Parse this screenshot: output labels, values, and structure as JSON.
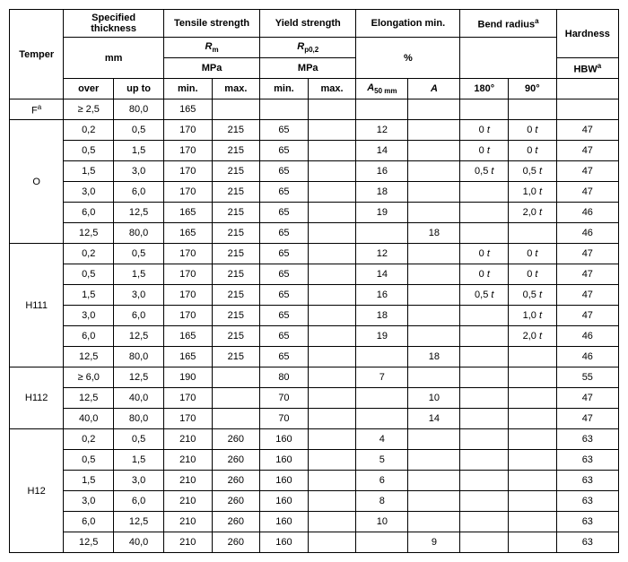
{
  "headers": {
    "temper": "Temper",
    "thickness": "Specified thickness",
    "tensile": "Tensile strength",
    "yield": "Yield strength",
    "elong": "Elongation min.",
    "bend": "Bend radius",
    "bend_sup": "a",
    "hardness": "Hardness",
    "Rm": "R",
    "Rm_sub": "m",
    "Rp": "R",
    "Rp_sub": "p0,2",
    "mm": "mm",
    "MPa": "MPa",
    "pct": "%",
    "HBW": "HBW",
    "HBW_sup": "a",
    "over": "over",
    "upto": "up to",
    "min": "min.",
    "max": "max.",
    "A50": "A",
    "A50_sub": "50 mm",
    "A": "A",
    "d180": "180°",
    "d90": "90°"
  },
  "groups": [
    {
      "temper": "F",
      "temper_sup": "a",
      "rows": [
        {
          "over": "≥ 2,5",
          "upto": "80,0",
          "tmin": "165",
          "tmax": "",
          "ymin": "",
          "ymax": "",
          "a50": "",
          "a": "",
          "b180": "",
          "b90": "",
          "hb": ""
        }
      ]
    },
    {
      "temper": "O",
      "rows": [
        {
          "over": "0,2",
          "upto": "0,5",
          "tmin": "170",
          "tmax": "215",
          "ymin": "65",
          "ymax": "",
          "a50": "12",
          "a": "",
          "b180": "0 t",
          "b90": "0 t",
          "hb": "47"
        },
        {
          "over": "0,5",
          "upto": "1,5",
          "tmin": "170",
          "tmax": "215",
          "ymin": "65",
          "ymax": "",
          "a50": "14",
          "a": "",
          "b180": "0 t",
          "b90": "0 t",
          "hb": "47"
        },
        {
          "over": "1,5",
          "upto": "3,0",
          "tmin": "170",
          "tmax": "215",
          "ymin": "65",
          "ymax": "",
          "a50": "16",
          "a": "",
          "b180": "0,5 t",
          "b90": "0,5 t",
          "hb": "47"
        },
        {
          "over": "3,0",
          "upto": "6,0",
          "tmin": "170",
          "tmax": "215",
          "ymin": "65",
          "ymax": "",
          "a50": "18",
          "a": "",
          "b180": "",
          "b90": "1,0 t",
          "hb": "47"
        },
        {
          "over": "6,0",
          "upto": "12,5",
          "tmin": "165",
          "tmax": "215",
          "ymin": "65",
          "ymax": "",
          "a50": "19",
          "a": "",
          "b180": "",
          "b90": "2,0 t",
          "hb": "46"
        },
        {
          "over": "12,5",
          "upto": "80,0",
          "tmin": "165",
          "tmax": "215",
          "ymin": "65",
          "ymax": "",
          "a50": "",
          "a": "18",
          "b180": "",
          "b90": "",
          "hb": "46"
        }
      ]
    },
    {
      "temper": "H111",
      "rows": [
        {
          "over": "0,2",
          "upto": "0,5",
          "tmin": "170",
          "tmax": "215",
          "ymin": "65",
          "ymax": "",
          "a50": "12",
          "a": "",
          "b180": "0 t",
          "b90": "0 t",
          "hb": "47"
        },
        {
          "over": "0,5",
          "upto": "1,5",
          "tmin": "170",
          "tmax": "215",
          "ymin": "65",
          "ymax": "",
          "a50": "14",
          "a": "",
          "b180": "0 t",
          "b90": "0 t",
          "hb": "47"
        },
        {
          "over": "1,5",
          "upto": "3,0",
          "tmin": "170",
          "tmax": "215",
          "ymin": "65",
          "ymax": "",
          "a50": "16",
          "a": "",
          "b180": "0,5 t",
          "b90": "0,5 t",
          "hb": "47"
        },
        {
          "over": "3,0",
          "upto": "6,0",
          "tmin": "170",
          "tmax": "215",
          "ymin": "65",
          "ymax": "",
          "a50": "18",
          "a": "",
          "b180": "",
          "b90": "1,0 t",
          "hb": "47"
        },
        {
          "over": "6,0",
          "upto": "12,5",
          "tmin": "165",
          "tmax": "215",
          "ymin": "65",
          "ymax": "",
          "a50": "19",
          "a": "",
          "b180": "",
          "b90": "2,0 t",
          "hb": "46"
        },
        {
          "over": "12,5",
          "upto": "80,0",
          "tmin": "165",
          "tmax": "215",
          "ymin": "65",
          "ymax": "",
          "a50": "",
          "a": "18",
          "b180": "",
          "b90": "",
          "hb": "46"
        }
      ]
    },
    {
      "temper": "H112",
      "rows": [
        {
          "over": "≥ 6,0",
          "upto": "12,5",
          "tmin": "190",
          "tmax": "",
          "ymin": "80",
          "ymax": "",
          "a50": "7",
          "a": "",
          "b180": "",
          "b90": "",
          "hb": "55"
        },
        {
          "over": "12,5",
          "upto": "40,0",
          "tmin": "170",
          "tmax": "",
          "ymin": "70",
          "ymax": "",
          "a50": "",
          "a": "10",
          "b180": "",
          "b90": "",
          "hb": "47"
        },
        {
          "over": "40,0",
          "upto": "80,0",
          "tmin": "170",
          "tmax": "",
          "ymin": "70",
          "ymax": "",
          "a50": "",
          "a": "14",
          "b180": "",
          "b90": "",
          "hb": "47"
        }
      ]
    },
    {
      "temper": "H12",
      "rows": [
        {
          "over": "0,2",
          "upto": "0,5",
          "tmin": "210",
          "tmax": "260",
          "ymin": "160",
          "ymax": "",
          "a50": "4",
          "a": "",
          "b180": "",
          "b90": "",
          "hb": "63"
        },
        {
          "over": "0,5",
          "upto": "1,5",
          "tmin": "210",
          "tmax": "260",
          "ymin": "160",
          "ymax": "",
          "a50": "5",
          "a": "",
          "b180": "",
          "b90": "",
          "hb": "63"
        },
        {
          "over": "1,5",
          "upto": "3,0",
          "tmin": "210",
          "tmax": "260",
          "ymin": "160",
          "ymax": "",
          "a50": "6",
          "a": "",
          "b180": "",
          "b90": "",
          "hb": "63"
        },
        {
          "over": "3,0",
          "upto": "6,0",
          "tmin": "210",
          "tmax": "260",
          "ymin": "160",
          "ymax": "",
          "a50": "8",
          "a": "",
          "b180": "",
          "b90": "",
          "hb": "63"
        },
        {
          "over": "6,0",
          "upto": "12,5",
          "tmin": "210",
          "tmax": "260",
          "ymin": "160",
          "ymax": "",
          "a50": "10",
          "a": "",
          "b180": "",
          "b90": "",
          "hb": "63"
        },
        {
          "over": "12,5",
          "upto": "40,0",
          "tmin": "210",
          "tmax": "260",
          "ymin": "160",
          "ymax": "",
          "a50": "",
          "a": "9",
          "b180": "",
          "b90": "",
          "hb": "63"
        }
      ]
    }
  ]
}
